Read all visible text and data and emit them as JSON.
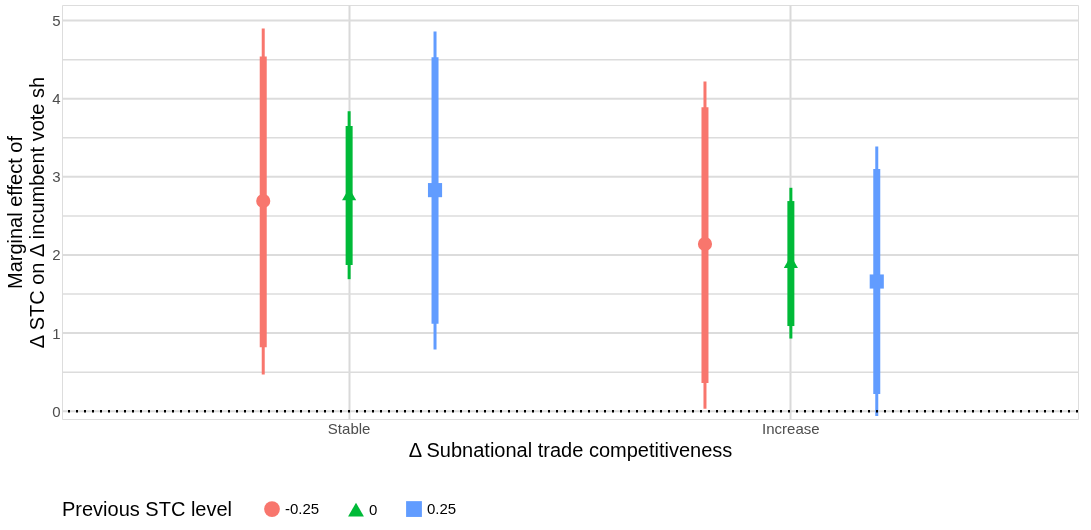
{
  "chart_data": {
    "type": "box",
    "xlabel": "Δ Subnational trade competitiveness",
    "ylabel": "Marginal effect of\nΔ STC on Δ incumbent vote sh",
    "legend_title": "Previous STC level",
    "categories": [
      "Stable",
      "Increase"
    ],
    "series": [
      {
        "name": "-0.25",
        "color": "#f8766d",
        "marker": "circle",
        "boxes": [
          {
            "low": 0.47,
            "q1": 0.82,
            "median": 2.69,
            "q3": 4.54,
            "high": 4.9
          },
          {
            "low": 0.03,
            "q1": 0.36,
            "median": 2.14,
            "q3": 3.89,
            "high": 4.22
          }
        ]
      },
      {
        "name": "0",
        "color": "#00ba38",
        "marker": "triangle",
        "boxes": [
          {
            "low": 1.69,
            "q1": 1.87,
            "median": 2.78,
            "q3": 3.65,
            "high": 3.84
          },
          {
            "low": 0.93,
            "q1": 1.09,
            "median": 1.91,
            "q3": 2.69,
            "high": 2.86
          }
        ]
      },
      {
        "name": "0.25",
        "color": "#619cff",
        "marker": "square",
        "boxes": [
          {
            "low": 0.79,
            "q1": 1.12,
            "median": 2.83,
            "q3": 4.53,
            "high": 4.86
          },
          {
            "low": -0.06,
            "q1": 0.22,
            "median": 1.66,
            "q3": 3.1,
            "high": 3.39
          }
        ]
      }
    ],
    "ylim": [
      -0.1,
      5.2
    ],
    "yticks": [
      0,
      {
        "value": 0.5,
        "label": null
      },
      1,
      {
        "value": 1.5,
        "label": null
      },
      2,
      {
        "value": 2.5,
        "label": null
      },
      3,
      {
        "value": 3.5,
        "label": null
      },
      4,
      {
        "value": 4.5,
        "label": null
      },
      5
    ],
    "ref_lines": [
      {
        "axis": "y",
        "value": 0,
        "color": "#000000",
        "line_style": "dotted"
      }
    ],
    "grid": true,
    "legend": "bottom"
  }
}
